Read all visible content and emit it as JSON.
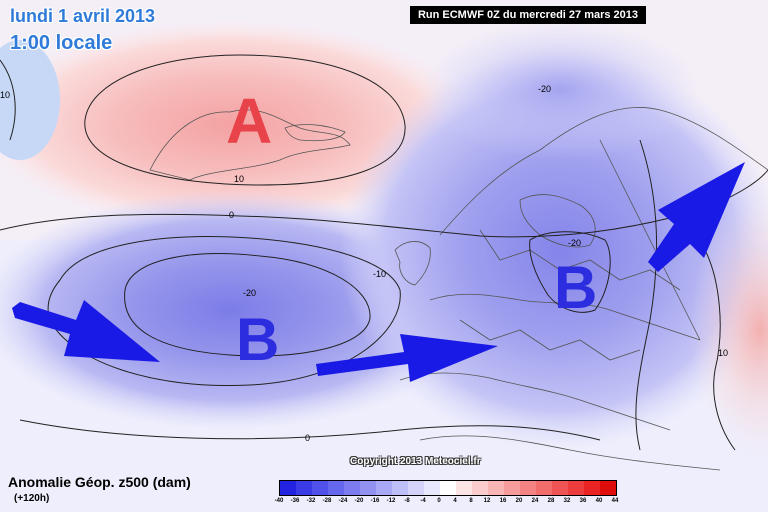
{
  "header": {
    "date_line1": "lundi 1 avril 2013",
    "date_line2": "1:00 locale",
    "run_info": "Run ECMWF 0Z du mercredi 27 mars 2013"
  },
  "map": {
    "high_label": "A",
    "low_labels": [
      "B",
      "B"
    ],
    "contour_labels": [
      "10",
      "10",
      "0",
      "-10",
      "-20",
      "-20",
      "-20",
      "10",
      "0"
    ],
    "colors": {
      "high": "#e8434a",
      "low": "#2d2de0",
      "arrow": "#1a1ae6",
      "title": "#2f7bd9"
    }
  },
  "legend": {
    "title": "Anomalie Géop. z500 (dam)",
    "subtitle": "(+120h)",
    "ticks": [
      "-40",
      "-36",
      "-32",
      "-28",
      "-24",
      "-20",
      "-16",
      "-12",
      "-8",
      "-4",
      "0",
      "4",
      "8",
      "12",
      "16",
      "20",
      "24",
      "28",
      "32",
      "36",
      "40",
      "44"
    ],
    "colors": [
      "#2222e0",
      "#3a3ae6",
      "#5050ea",
      "#6666ee",
      "#7c7cf0",
      "#9292f3",
      "#a8a8f5",
      "#bebef8",
      "#d4d4fb",
      "#e8e8fd",
      "#ffffff",
      "#fde4e4",
      "#fbcccc",
      "#f9b4b4",
      "#f69c9c",
      "#f48484",
      "#f26c6c",
      "#ef5454",
      "#ed3c3c",
      "#ea2424",
      "#e00c0c"
    ]
  },
  "footer": {
    "copyright": "Copyright 2013 Meteociel.fr"
  }
}
